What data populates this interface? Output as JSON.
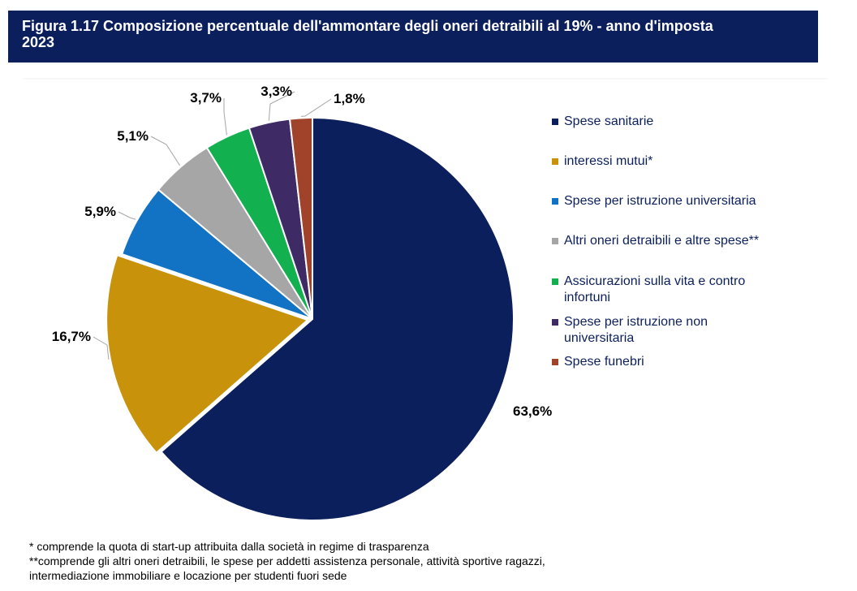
{
  "header": {
    "title_line1": "Figura 1.17 Composizione percentuale dell'ammontare degli oneri detraibili al 19% - anno d'imposta",
    "title_line2": "2023"
  },
  "chart_data": {
    "type": "pie",
    "title": "Figura 1.17 Composizione percentuale dell'ammontare degli oneri detraibili al 19% - anno d'imposta 2023",
    "categories": [
      "Spese sanitarie",
      "interessi mutui*",
      "Spese per istruzione universitaria",
      "Altri oneri detraibili e altre spese**",
      "Assicurazioni sulla vita e contro infortuni",
      "Spese per istruzione non universitaria",
      "Spese funebri"
    ],
    "values": [
      63.6,
      16.7,
      5.9,
      5.1,
      3.7,
      3.3,
      1.8
    ],
    "data_labels": [
      "63,6%",
      "16,7%",
      "5,9%",
      "5,1%",
      "3,7%",
      "3,3%",
      "1,8%"
    ],
    "colors": [
      "#0b1f5c",
      "#c9920b",
      "#1273c4",
      "#a6a6a6",
      "#12b04f",
      "#3e2a65",
      "#a1432b"
    ],
    "legend_position": "right"
  },
  "legend": {
    "items": [
      {
        "label_lines": [
          "Spese sanitarie"
        ]
      },
      {
        "label_lines": [
          "interessi mutui*"
        ]
      },
      {
        "label_lines": [
          "Spese per istruzione universitaria"
        ]
      },
      {
        "label_lines": [
          "Altri oneri detraibili e altre spese**"
        ]
      },
      {
        "label_lines": [
          "Assicurazioni sulla vita e contro",
          "infortuni"
        ]
      },
      {
        "label_lines": [
          "Spese per istruzione non",
          "universitaria"
        ]
      },
      {
        "label_lines": [
          "Spese funebri"
        ]
      }
    ]
  },
  "notes": {
    "line1": "* comprende la quota di start-up attribuita dalla società in regime di trasparenza",
    "line2": "**comprende gli altri oneri detraibili, le spese per addetti assistenza personale, attività sportive ragazzi,",
    "line3": "intermediazione immobiliare e locazione per studenti fuori sede"
  }
}
